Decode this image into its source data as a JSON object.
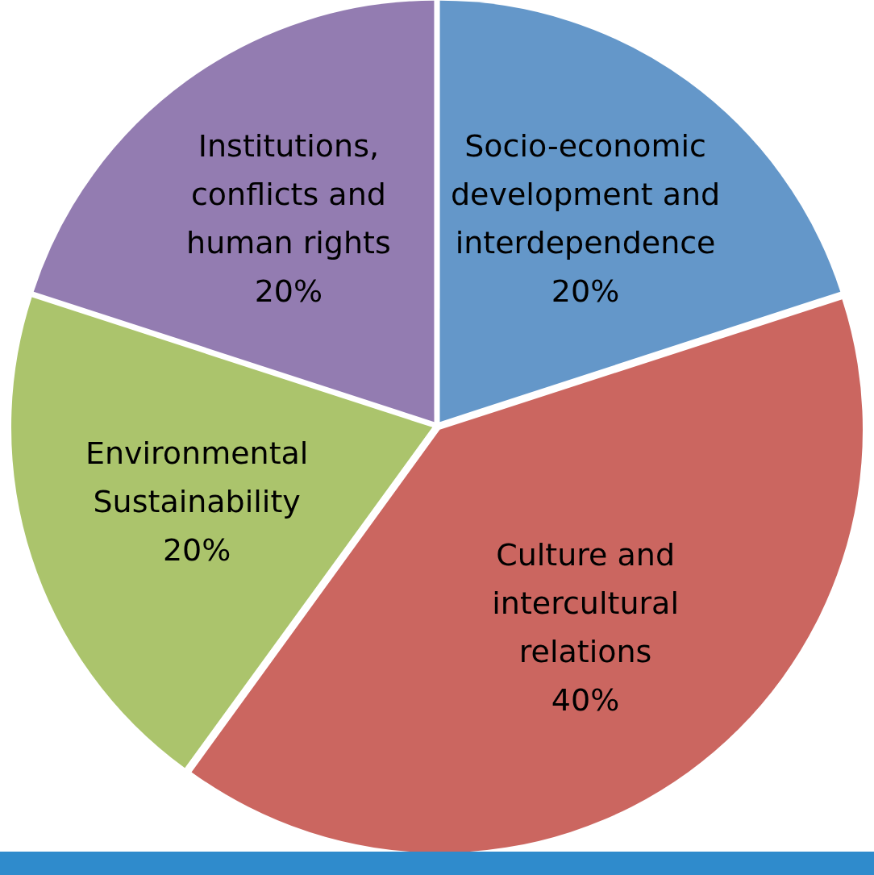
{
  "chart_data": {
    "type": "pie",
    "categories": [
      "Socio-economic development and interdependence",
      "Culture and intercultural relations",
      "Environmental Sustainability",
      "Institutions, conflicts and human rights"
    ],
    "values": [
      20,
      40,
      20,
      20
    ],
    "colors": [
      "#6497c9",
      "#cb6660",
      "#abc46c",
      "#937cb1"
    ],
    "value_labels": [
      "20%",
      "40%",
      "20%",
      "20%"
    ],
    "legend": false
  }
}
